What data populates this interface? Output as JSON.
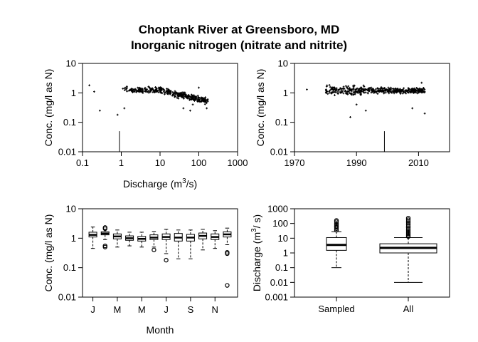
{
  "chart_data": {
    "title": [
      "Choptank River at Greensboro, MD",
      "Inorganic nitrogen (nitrate and nitrite)"
    ],
    "panels": [
      {
        "id": "conc-vs-discharge",
        "type": "scatter",
        "xlabel_base": "Discharge (m",
        "xlabel_sup": "3",
        "xlabel_tail": "/s)",
        "ylabel": "Conc. (mg/l as N)",
        "x_scale": "log",
        "y_scale": "log",
        "xlim": [
          0.1,
          1000
        ],
        "ylim": [
          0.01,
          10
        ],
        "xticks": [
          0.1,
          1,
          10,
          100,
          1000
        ],
        "xtick_labels": [
          "0.1",
          "1",
          "10",
          "100",
          "1000"
        ],
        "yticks": [
          0.01,
          0.1,
          1,
          10
        ],
        "ytick_labels": [
          "0.01",
          "0.1",
          "1",
          "10"
        ],
        "reference_line": {
          "x": 0.9,
          "y_top": 0.05
        },
        "cloud": {
          "x_range": [
            0.15,
            170
          ],
          "y_center": 1.25,
          "count": 360
        },
        "points": [
          {
            "x": 0.15,
            "y": 1.8
          },
          {
            "x": 0.2,
            "y": 1.1
          },
          {
            "x": 0.28,
            "y": 0.25
          },
          {
            "x": 0.8,
            "y": 0.18
          },
          {
            "x": 1.2,
            "y": 0.3
          },
          {
            "x": 40,
            "y": 0.3
          },
          {
            "x": 60,
            "y": 0.25
          },
          {
            "x": 100,
            "y": 1.5
          },
          {
            "x": 160,
            "y": 0.3
          },
          {
            "x": 120,
            "y": 0.55
          },
          {
            "x": 70,
            "y": 0.4
          }
        ]
      },
      {
        "id": "conc-vs-time",
        "type": "scatter",
        "xlabel": "",
        "ylabel": "Conc. (mg/l as N)",
        "x_scale": "linear",
        "y_scale": "log",
        "xlim": [
          1970,
          2020
        ],
        "ylim": [
          0.01,
          10
        ],
        "xticks": [
          1970,
          1990,
          2010
        ],
        "xtick_labels": [
          "1970",
          "1990",
          "2010"
        ],
        "yticks": [
          0.01,
          0.1,
          1,
          10
        ],
        "ytick_labels": [
          "0.01",
          "0.1",
          "1",
          "10"
        ],
        "reference_line": {
          "x": 1999,
          "y_top": 0.05
        },
        "cloud": {
          "x_range": [
            1980,
            2012
          ],
          "y_center": 1.2,
          "count": 420
        },
        "points": [
          {
            "x": 1974,
            "y": 1.3
          },
          {
            "x": 1988,
            "y": 0.15
          },
          {
            "x": 1993,
            "y": 0.25
          },
          {
            "x": 2008,
            "y": 0.3
          },
          {
            "x": 2012,
            "y": 0.2
          },
          {
            "x": 1990,
            "y": 0.4
          },
          {
            "x": 2011,
            "y": 2.2
          }
        ]
      },
      {
        "id": "conc-by-month",
        "type": "box",
        "xlabel": "Month",
        "ylabel": "Conc. (mg/l as N)",
        "y_scale": "log",
        "ylim": [
          0.01,
          10
        ],
        "yticks": [
          0.01,
          0.1,
          1,
          10
        ],
        "ytick_labels": [
          "0.01",
          "0.1",
          "1",
          "10"
        ],
        "xtick_labels": [
          "J",
          "M",
          "M",
          "J",
          "S",
          "N"
        ],
        "xtick_positions": [
          1,
          3,
          5,
          7,
          9,
          11
        ],
        "boxes": [
          {
            "min": 0.45,
            "q1": 1.1,
            "median": 1.3,
            "q3": 1.6,
            "max": 2.4,
            "outliers": []
          },
          {
            "min": 0.9,
            "q1": 1.3,
            "median": 1.45,
            "q3": 1.65,
            "max": 2.0,
            "outliers": [
              0.5,
              0.55,
              2.1,
              2.3
            ]
          },
          {
            "min": 0.5,
            "q1": 0.95,
            "median": 1.15,
            "q3": 1.4,
            "max": 1.9,
            "outliers": []
          },
          {
            "min": 0.55,
            "q1": 0.85,
            "median": 1.0,
            "q3": 1.2,
            "max": 1.6,
            "outliers": []
          },
          {
            "min": 0.5,
            "q1": 0.8,
            "median": 0.95,
            "q3": 1.15,
            "max": 1.6,
            "outliers": []
          },
          {
            "min": 0.5,
            "q1": 0.9,
            "median": 1.05,
            "q3": 1.3,
            "max": 1.7,
            "outliers": [
              0.4
            ]
          },
          {
            "min": 0.3,
            "q1": 0.9,
            "median": 1.1,
            "q3": 1.4,
            "max": 2.0,
            "outliers": [
              0.18
            ]
          },
          {
            "min": 0.2,
            "q1": 0.8,
            "median": 1.05,
            "q3": 1.45,
            "max": 1.9,
            "outliers": []
          },
          {
            "min": 0.2,
            "q1": 0.8,
            "median": 1.05,
            "q3": 1.35,
            "max": 1.9,
            "outliers": []
          },
          {
            "min": 0.4,
            "q1": 0.95,
            "median": 1.2,
            "q3": 1.5,
            "max": 2.0,
            "outliers": []
          },
          {
            "min": 0.45,
            "q1": 0.9,
            "median": 1.1,
            "q3": 1.4,
            "max": 1.8,
            "outliers": []
          },
          {
            "min": 0.6,
            "q1": 1.1,
            "median": 1.35,
            "q3": 1.65,
            "max": 2.2,
            "outliers": [
              0.3,
              0.33,
              0.025
            ]
          }
        ]
      },
      {
        "id": "discharge-boxes",
        "type": "box",
        "xlabel": "",
        "ylabel_base": "Discharge (m",
        "ylabel_sup": "3",
        "ylabel_tail": "/ s)",
        "y_scale": "log",
        "ylim": [
          0.001,
          1000
        ],
        "yticks": [
          0.001,
          0.01,
          0.1,
          1,
          10,
          100,
          1000
        ],
        "ytick_labels": [
          "0.001",
          "0.01",
          "0.1",
          "1",
          "10",
          "100",
          "1000"
        ],
        "xtick_labels": [
          "Sampled",
          "All"
        ],
        "boxes": [
          {
            "min": 0.1,
            "q1": 1.5,
            "median": 3.5,
            "q3": 11,
            "max": 28,
            "outliers": [
              35,
              45,
              55,
              65,
              80,
              100,
              130,
              160
            ]
          },
          {
            "min": 0.01,
            "q1": 1.0,
            "median": 2.2,
            "q3": 4.2,
            "max": 11,
            "outliers": [
              13,
              16,
              20,
              25,
              32,
              40,
              52,
              66,
              85,
              110,
              140,
              180,
              230
            ]
          }
        ]
      }
    ]
  }
}
